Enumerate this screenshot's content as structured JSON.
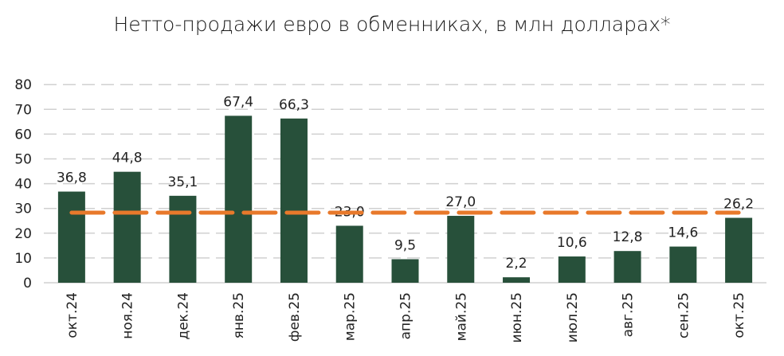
{
  "chart_data": {
    "type": "bar",
    "title": "Нетто-продажи евро в обменниках, в млн долларах*",
    "categories": [
      "окт.24",
      "ноя.24",
      "дек.24",
      "янв.25",
      "фев.25",
      "мар.25",
      "апр.25",
      "май.25",
      "июн.25",
      "июл.25",
      "авг.25",
      "сен.25",
      "окт.25"
    ],
    "values": [
      36.8,
      44.8,
      35.1,
      67.4,
      66.3,
      23.0,
      9.5,
      27.0,
      2.2,
      10.6,
      12.8,
      14.6,
      26.2
    ],
    "data_labels": [
      "36,8",
      "44,8",
      "35,1",
      "67,4",
      "66,3",
      "23,0",
      "9,5",
      "27,0",
      "2,2",
      "10,6",
      "12,8",
      "14,6",
      "26,2"
    ],
    "reference_line": {
      "value": 28.3,
      "style": "dashed",
      "color": "#E8792B"
    },
    "ylim": [
      0,
      80
    ],
    "yticks": [
      "0",
      "10",
      "20",
      "30",
      "40",
      "50",
      "60",
      "70",
      "80"
    ],
    "grid": true,
    "bar_color": "#27503A",
    "xlabel": "",
    "ylabel": ""
  }
}
